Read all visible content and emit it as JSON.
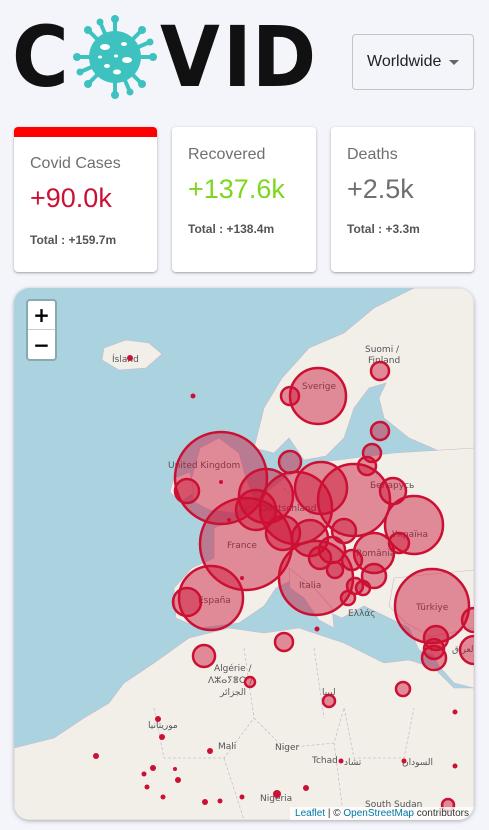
{
  "header": {
    "logo_letters": [
      "C",
      "V",
      "I",
      "D"
    ],
    "country_select": {
      "value": "Worldwide"
    }
  },
  "cards": [
    {
      "title": "Covid Cases",
      "value": "+90.0k",
      "total": "Total : +159.7m",
      "color": "#cc1034",
      "active": true
    },
    {
      "title": "Recovered",
      "value": "+137.6k",
      "total": "Total : +138.4m",
      "color": "#7dd71d",
      "active": false
    },
    {
      "title": "Deaths",
      "value": "+2.5k",
      "total": "Total : +3.3m",
      "color": "#6f6f6f",
      "active": false
    }
  ],
  "map": {
    "zoom_in": "+",
    "zoom_out": "−",
    "attribution": {
      "leaflet": "Leaflet",
      "separator": " | © ",
      "osm": "OpenStreetMap",
      "suffix": " contributors"
    },
    "labels": {
      "island": "Ísland",
      "suomi": "Suomi /",
      "finland": "Finland",
      "sverige": "Sverige",
      "uk": "United Kingdom",
      "belarus": "Беларусь",
      "deutschland": "Deutschland",
      "ukraine": "Україна",
      "france": "France",
      "romania": "România",
      "italia": "Italia",
      "espana": "España",
      "turkiye": "Türkiye",
      "ellas": "Ελλάς",
      "algerie1": "Algérie /",
      "algerie2": "ⴷⵣⴰⵢⴻⵔ /",
      "algerie3": "الجزائر",
      "libya": "ليبيا",
      "mauritania": "موريتانيا",
      "mali": "Mali",
      "niger": "Niger",
      "tchad": "Tchad",
      "tchad_ar": "تشاد",
      "sudan": "السودان",
      "nigeria": "Nigeria",
      "south_sudan": "South Sudan",
      "iraq": "العراق"
    },
    "circle_color": "#cc1034"
  }
}
